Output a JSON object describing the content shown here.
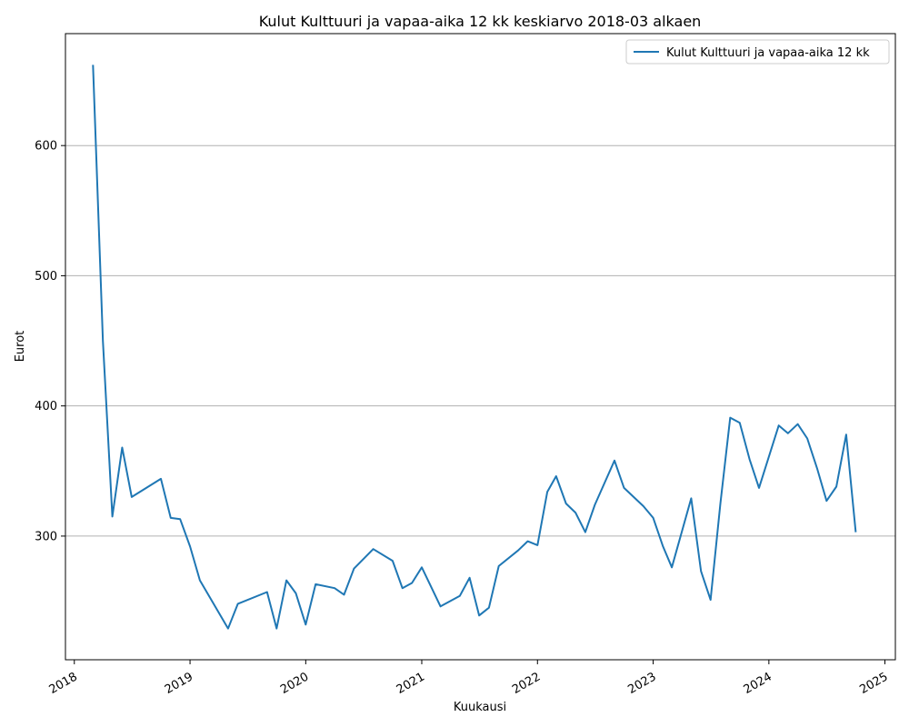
{
  "chart_data": {
    "type": "line",
    "title": "Kulut Kulttuuri ja vapaa-aika 12 kk keskiarvo 2018-03 alkaen",
    "xlabel": "Kuukausi",
    "ylabel": "Eurot",
    "x_ticks": [
      "2018",
      "2019",
      "2020",
      "2021",
      "2022",
      "2023",
      "2024",
      "2025"
    ],
    "y_ticks": [
      300,
      400,
      500,
      600
    ],
    "xlim": [
      "2017-12-04",
      "2025-02-03"
    ],
    "ylim": [
      205,
      686
    ],
    "grid": "y",
    "legend": "top-right",
    "series": [
      {
        "name": "Kulut Kulttuuri ja vapaa-aika 12 kk",
        "color": "#1f77b4",
        "points": [
          [
            "2018-03-01",
            662
          ],
          [
            "2018-04-01",
            450
          ],
          [
            "2018-05-01",
            315
          ],
          [
            "2018-06-01",
            368
          ],
          [
            "2018-07-01",
            330
          ],
          [
            "2018-10-01",
            344
          ],
          [
            "2018-11-01",
            314
          ],
          [
            "2018-12-01",
            313
          ],
          [
            "2019-01-01",
            292
          ],
          [
            "2019-02-01",
            266
          ],
          [
            "2019-05-01",
            229
          ],
          [
            "2019-06-01",
            248
          ],
          [
            "2019-09-01",
            257
          ],
          [
            "2019-10-01",
            229
          ],
          [
            "2019-11-01",
            266
          ],
          [
            "2019-12-01",
            256
          ],
          [
            "2020-01-01",
            232
          ],
          [
            "2020-02-01",
            263
          ],
          [
            "2020-04-01",
            260
          ],
          [
            "2020-05-01",
            255
          ],
          [
            "2020-06-01",
            275
          ],
          [
            "2020-08-01",
            290
          ],
          [
            "2020-10-01",
            281
          ],
          [
            "2020-11-01",
            260
          ],
          [
            "2020-12-01",
            264
          ],
          [
            "2021-01-01",
            276
          ],
          [
            "2021-03-01",
            246
          ],
          [
            "2021-05-01",
            254
          ],
          [
            "2021-06-01",
            268
          ],
          [
            "2021-07-01",
            239
          ],
          [
            "2021-08-01",
            245
          ],
          [
            "2021-09-01",
            277
          ],
          [
            "2021-11-01",
            289
          ],
          [
            "2021-12-01",
            296
          ],
          [
            "2022-01-01",
            293
          ],
          [
            "2022-02-01",
            334
          ],
          [
            "2022-03-01",
            346
          ],
          [
            "2022-04-01",
            325
          ],
          [
            "2022-05-01",
            318
          ],
          [
            "2022-06-01",
            303
          ],
          [
            "2022-07-01",
            324
          ],
          [
            "2022-09-01",
            358
          ],
          [
            "2022-10-01",
            337
          ],
          [
            "2022-12-01",
            323
          ],
          [
            "2023-01-01",
            314
          ],
          [
            "2023-02-01",
            292
          ],
          [
            "2023-03-01",
            276
          ],
          [
            "2023-05-01",
            329
          ],
          [
            "2023-06-01",
            273
          ],
          [
            "2023-07-01",
            251
          ],
          [
            "2023-08-01",
            325
          ],
          [
            "2023-09-01",
            391
          ],
          [
            "2023-10-01",
            387
          ],
          [
            "2023-11-01",
            359
          ],
          [
            "2023-12-01",
            337
          ],
          [
            "2024-02-01",
            385
          ],
          [
            "2024-03-01",
            379
          ],
          [
            "2024-04-01",
            386
          ],
          [
            "2024-05-01",
            375
          ],
          [
            "2024-06-01",
            352
          ],
          [
            "2024-07-01",
            327
          ],
          [
            "2024-08-01",
            338
          ],
          [
            "2024-09-01",
            378
          ],
          [
            "2024-10-01",
            303
          ]
        ]
      }
    ]
  }
}
